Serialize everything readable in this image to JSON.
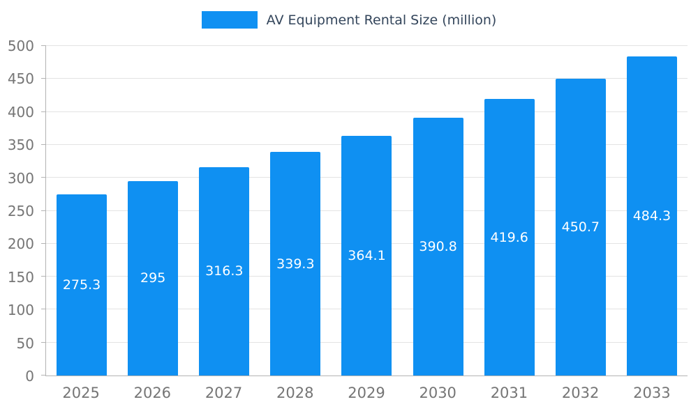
{
  "chart_data": {
    "type": "bar",
    "title": "AV Equipment Rental Size (million)",
    "categories": [
      "2025",
      "2026",
      "2027",
      "2028",
      "2029",
      "2030",
      "2031",
      "2032",
      "2033"
    ],
    "values": [
      275.3,
      295,
      316.3,
      339.3,
      364.1,
      390.8,
      419.6,
      450.7,
      484.3
    ],
    "value_labels": [
      "275.3",
      "295",
      "316.3",
      "339.3",
      "364.1",
      "390.8",
      "419.6",
      "450.7",
      "484.3"
    ],
    "xlabel": "",
    "ylabel": "",
    "ylim": [
      0,
      500
    ],
    "ytick_step": 50,
    "grid": true,
    "legend_position": "top-center",
    "colors": {
      "bar": "#0f90f2",
      "value_label": "#ffffff",
      "axis_label": "#757575",
      "gridline": "#e3e3e3",
      "axis_line": "#b3b3b3",
      "legend_text": "#33455b",
      "background": "#ffffff"
    }
  }
}
